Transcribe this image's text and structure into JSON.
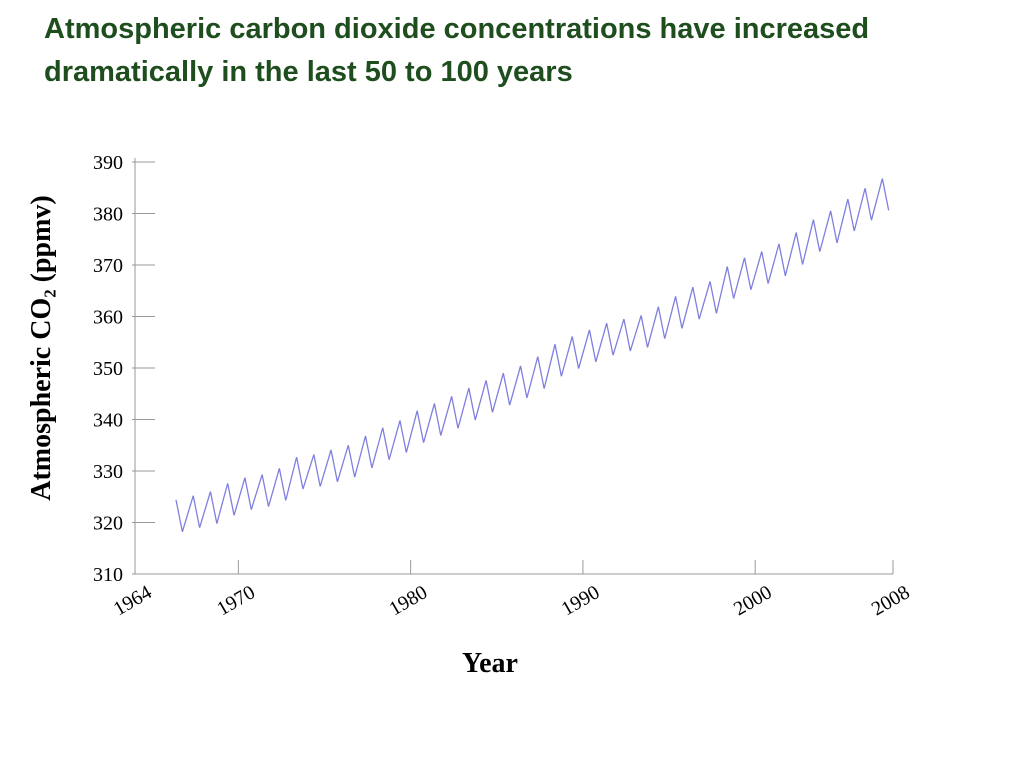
{
  "chart_data": {
    "type": "line",
    "title": "Atmospheric carbon dioxide concentrations have increased dramatically in the last 50 to 100 years",
    "xlabel": "Year",
    "ylabel": "Atmospheric CO₂ (ppmv)",
    "xlim": [
      1964,
      2008
    ],
    "xticks": [
      1964,
      1970,
      1980,
      1990,
      2000,
      2008
    ],
    "ylim": [
      310,
      390
    ],
    "yticks": [
      310,
      320,
      330,
      340,
      350,
      360,
      370,
      380,
      390
    ],
    "grid": false,
    "x": [
      1966.38,
      1966.75,
      1967.38,
      1967.75,
      1968.38,
      1968.75,
      1969.38,
      1969.75,
      1970.38,
      1970.75,
      1971.38,
      1971.75,
      1972.38,
      1972.75,
      1973.38,
      1973.75,
      1974.38,
      1974.75,
      1975.38,
      1975.75,
      1976.38,
      1976.75,
      1977.38,
      1977.75,
      1978.38,
      1978.75,
      1979.38,
      1979.75,
      1980.38,
      1980.75,
      1981.38,
      1981.75,
      1982.38,
      1982.75,
      1983.38,
      1983.75,
      1984.38,
      1984.75,
      1985.38,
      1985.75,
      1986.38,
      1986.75,
      1987.38,
      1987.75,
      1988.38,
      1988.75,
      1989.38,
      1989.75,
      1990.38,
      1990.75,
      1991.38,
      1991.75,
      1992.38,
      1992.75,
      1993.38,
      1993.75,
      1994.38,
      1994.75,
      1995.38,
      1995.75,
      1996.38,
      1996.75,
      1997.38,
      1997.75,
      1998.38,
      1998.75,
      1999.38,
      1999.75,
      2000.38,
      2000.75,
      2001.38,
      2001.75,
      2002.38,
      2002.75,
      2003.38,
      2003.75,
      2004.38,
      2004.75,
      2005.38,
      2005.75,
      2006.38,
      2006.75,
      2007.38,
      2007.75
    ],
    "series": [
      {
        "color": "#7f7fe0",
        "values": [
          324.4,
          318.2,
          325.2,
          319.0,
          326.0,
          319.8,
          327.6,
          321.4,
          328.7,
          322.5,
          329.3,
          323.1,
          330.5,
          324.3,
          332.7,
          326.5,
          333.2,
          327.0,
          334.1,
          327.9,
          335.0,
          328.8,
          336.8,
          330.6,
          338.4,
          332.2,
          339.8,
          333.6,
          341.7,
          335.5,
          343.1,
          336.9,
          344.5,
          338.3,
          346.1,
          339.9,
          347.6,
          341.4,
          349.0,
          342.8,
          350.4,
          344.2,
          352.2,
          346.0,
          354.6,
          348.4,
          356.1,
          349.9,
          357.4,
          351.2,
          358.7,
          352.5,
          359.5,
          353.3,
          360.2,
          354.0,
          361.9,
          355.7,
          363.9,
          357.7,
          365.7,
          359.5,
          366.8,
          360.6,
          369.7,
          363.5,
          371.4,
          365.2,
          372.6,
          366.4,
          374.1,
          367.9,
          376.3,
          370.1,
          378.8,
          372.6,
          380.5,
          374.3,
          382.8,
          376.6,
          384.9,
          378.7,
          386.8,
          380.6
        ]
      }
    ]
  }
}
